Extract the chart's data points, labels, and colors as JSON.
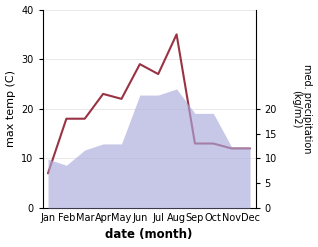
{
  "months": [
    "Jan",
    "Feb",
    "Mar",
    "Apr",
    "May",
    "Jun",
    "Jul",
    "Aug",
    "Sep",
    "Oct",
    "Nov",
    "Dec"
  ],
  "month_positions": [
    0,
    1,
    2,
    3,
    4,
    5,
    6,
    7,
    8,
    9,
    10,
    11
  ],
  "max_temp": [
    7,
    18,
    18,
    23,
    22,
    29,
    27,
    35,
    13,
    13,
    12,
    12
  ],
  "precipitation": [
    16,
    14,
    19,
    21,
    21,
    37,
    37,
    39,
    31,
    31,
    20,
    20
  ],
  "temp_color": "#993344",
  "precip_fill_color": "#aaaadd",
  "precip_fill_alpha": 0.65,
  "temp_ylim": [
    0,
    40
  ],
  "precip_ylim": [
    0,
    65
  ],
  "precip_yticks": [
    0,
    5,
    10,
    15,
    20
  ],
  "precip_ytick_vals": [
    0,
    8.125,
    16.25,
    24.375,
    32.5
  ],
  "ylabel_left": "max temp (C)",
  "ylabel_right": "med. precipitation\n(kg/m2)",
  "xlabel": "date (month)",
  "bg_color": "#ffffff",
  "tick_fontsize": 7,
  "label_fontsize": 8,
  "xlabel_fontsize": 8.5
}
